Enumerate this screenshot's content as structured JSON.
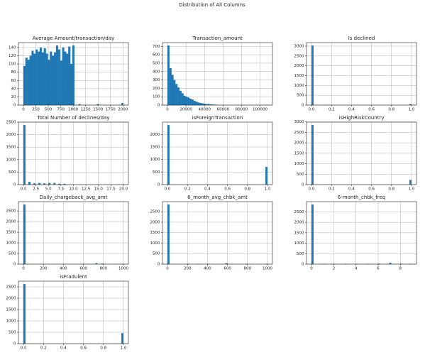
{
  "title": "Distribution of All Columns",
  "chart_data": [
    {
      "type": "histogram",
      "title": "Average Amount/transaction/day",
      "color": "#1f77b4",
      "grid": true,
      "bins": [
        0,
        41,
        82,
        123,
        164,
        205,
        246,
        287,
        328,
        369,
        410,
        451,
        492,
        533,
        574,
        615,
        656,
        697,
        738,
        779,
        820,
        861,
        902,
        943,
        984,
        1025,
        1107,
        1148,
        1476,
        1517,
        1968,
        2009
      ],
      "counts": [
        95,
        115,
        110,
        120,
        132,
        125,
        135,
        130,
        140,
        128,
        138,
        125,
        110,
        130,
        120,
        128,
        145,
        135,
        108,
        140,
        130,
        125,
        142,
        100,
        145,
        0,
        2,
        0,
        2,
        0,
        5
      ],
      "xlim": [
        -100,
        2110
      ],
      "ylim": [
        0,
        152
      ],
      "xticks": [
        0,
        250,
        500,
        750,
        1000,
        1250,
        1500,
        1750,
        2000
      ],
      "yticks": [
        0,
        20,
        40,
        60,
        80,
        100,
        120,
        140
      ]
    },
    {
      "type": "histogram",
      "title": "Transaction_amount",
      "color": "#1f77b4",
      "grid": true,
      "bins": [
        0,
        2160,
        4320,
        6480,
        8640,
        10800,
        12960,
        15120,
        17280,
        19440,
        21600,
        23760,
        25920,
        28080,
        30240,
        32400,
        34560,
        36720,
        38880,
        41040,
        43200,
        45360,
        47520,
        49680,
        51840,
        54000,
        105840,
        108000
      ],
      "counts": [
        710,
        440,
        360,
        300,
        250,
        210,
        170,
        140,
        110,
        100,
        90,
        75,
        65,
        50,
        40,
        30,
        25,
        20,
        15,
        10,
        12,
        8,
        6,
        4,
        3,
        0,
        1
      ],
      "xlim": [
        -5400,
        113400
      ],
      "ylim": [
        0,
        745
      ],
      "xticks": [
        0,
        20000,
        40000,
        60000,
        80000,
        100000
      ],
      "yticks": [
        0,
        100,
        200,
        300,
        400,
        500,
        600,
        700
      ]
    },
    {
      "type": "histogram",
      "title": "Is declined",
      "color": "#1f77b4",
      "grid": true,
      "bins": [
        0,
        0.02,
        0.98,
        1.0
      ],
      "counts": [
        3030,
        0,
        40
      ],
      "xlim": [
        -0.05,
        1.05
      ],
      "ylim": [
        0,
        3180
      ],
      "xticks": [
        {
          "value": 0,
          "label": "0.0"
        },
        0.2,
        0.4,
        0.6,
        0.8,
        {
          "value": 1,
          "label": "1.0"
        }
      ],
      "yticks": [
        0,
        500,
        1000,
        1500,
        2000,
        2500,
        3000
      ]
    },
    {
      "type": "histogram",
      "title": "Total Number of declines/day",
      "color": "#1f77b4",
      "grid": true,
      "bins": [
        0,
        0.4,
        1.0,
        1.4,
        2.0,
        2.4,
        3.0,
        3.4,
        4.0,
        4.4,
        5.0,
        5.4,
        6.0,
        6.4,
        7.0,
        7.4,
        8.0,
        8.4,
        19.6,
        20.0
      ],
      "counts": [
        2380,
        0,
        110,
        0,
        50,
        0,
        60,
        0,
        50,
        0,
        60,
        0,
        60,
        0,
        30,
        0,
        30,
        0,
        5
      ],
      "xlim": [
        -1,
        21
      ],
      "ylim": [
        0,
        2500
      ],
      "xticks": [
        {
          "value": 0,
          "label": "0.0"
        },
        2.5,
        {
          "value": 5,
          "label": "5.0"
        },
        7.5,
        {
          "value": 10,
          "label": "10.0"
        },
        12.5,
        {
          "value": 15,
          "label": "15.0"
        },
        17.5,
        {
          "value": 20,
          "label": "20.0"
        }
      ],
      "yticks": [
        0,
        500,
        1000,
        1500,
        2000,
        2500
      ]
    },
    {
      "type": "histogram",
      "title": "isForeignTransaction",
      "color": "#1f77b4",
      "grid": true,
      "bins": [
        0,
        0.02,
        0.98,
        1.0
      ],
      "counts": [
        2370,
        0,
        700
      ],
      "xlim": [
        -0.05,
        1.05
      ],
      "ylim": [
        0,
        2490
      ],
      "xticks": [
        {
          "value": 0,
          "label": "0.0"
        },
        0.2,
        0.4,
        0.6,
        0.8,
        {
          "value": 1,
          "label": "1.0"
        }
      ],
      "yticks": [
        0,
        500,
        1000,
        1500,
        2000
      ]
    },
    {
      "type": "histogram",
      "title": "isHighRiskCountry",
      "color": "#1f77b4",
      "grid": true,
      "bins": [
        0,
        0.02,
        0.98,
        1.0
      ],
      "counts": [
        2850,
        0,
        220
      ],
      "xlim": [
        -0.05,
        1.05
      ],
      "ylim": [
        0,
        2990
      ],
      "xticks": [
        {
          "value": 0,
          "label": "0.0"
        },
        0.2,
        0.4,
        0.6,
        0.8,
        {
          "value": 1,
          "label": "1.0"
        }
      ],
      "yticks": [
        0,
        500,
        1000,
        1500,
        2000,
        2500,
        3000
      ]
    },
    {
      "type": "histogram",
      "title": "Daily_chargeback_avg_amt",
      "color": "#1f77b4",
      "grid": true,
      "bins": [
        0,
        20,
        720,
        740,
        780,
        800,
        980,
        1000
      ],
      "counts": [
        2800,
        0,
        40,
        0,
        20,
        0,
        10
      ],
      "xlim": [
        -50,
        1050
      ],
      "ylim": [
        0,
        2940
      ],
      "xticks": [
        0,
        200,
        400,
        600,
        800,
        1000
      ],
      "yticks": [
        0,
        500,
        1000,
        1500,
        2000,
        2500
      ]
    },
    {
      "type": "histogram",
      "title": "6_month_avg_chbk_amt",
      "color": "#1f77b4",
      "grid": true,
      "bins": [
        0,
        20,
        200,
        220,
        300,
        320,
        400,
        420,
        580,
        600,
        780,
        800,
        980,
        1000
      ],
      "counts": [
        2840,
        0,
        10,
        0,
        10,
        0,
        10,
        0,
        40,
        0,
        10,
        0,
        5
      ],
      "xlim": [
        -50,
        1050
      ],
      "ylim": [
        0,
        2980
      ],
      "xticks": [
        0,
        200,
        400,
        600,
        800,
        1000
      ],
      "yticks": [
        0,
        500,
        1000,
        1500,
        2000,
        2500
      ]
    },
    {
      "type": "histogram",
      "title": "6-month_chbk_freq",
      "color": "#1f77b4",
      "grid": true,
      "bins": [
        0,
        0.18,
        1,
        1.18,
        2,
        2.18,
        3,
        3.18,
        4,
        4.18,
        5,
        5.18,
        6,
        6.18,
        7,
        7.18,
        8,
        8.18,
        8.82,
        9
      ],
      "counts": [
        2850,
        0,
        10,
        0,
        10,
        0,
        15,
        0,
        10,
        0,
        10,
        0,
        20,
        0,
        60,
        0,
        15,
        0,
        10
      ],
      "xlim": [
        -0.45,
        9.45
      ],
      "ylim": [
        0,
        2990
      ],
      "xticks": [
        0,
        2,
        4,
        6,
        8
      ],
      "yticks": [
        0,
        500,
        1000,
        1500,
        2000,
        2500
      ]
    },
    {
      "type": "histogram",
      "title": "isFradulent",
      "color": "#1f77b4",
      "grid": true,
      "bins": [
        0,
        0.02,
        0.98,
        1.0
      ],
      "counts": [
        2620,
        0,
        460
      ],
      "xlim": [
        -0.05,
        1.05
      ],
      "ylim": [
        0,
        2750
      ],
      "xticks": [
        {
          "value": 0,
          "label": "0.0"
        },
        0.2,
        0.4,
        0.6,
        0.8,
        {
          "value": 1,
          "label": "1.0"
        }
      ],
      "yticks": [
        0,
        500,
        1000,
        1500,
        2000,
        2500
      ]
    }
  ]
}
